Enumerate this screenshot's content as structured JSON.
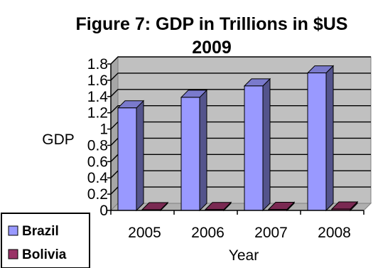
{
  "chart_data": {
    "type": "bar",
    "title": "Figure 7: GDP in Trillions in $US",
    "subtitle": "2009",
    "xlabel": "Year",
    "ylabel": "GDP",
    "categories": [
      "2005",
      "2006",
      "2007",
      "2008"
    ],
    "series": [
      {
        "name": "Brazil",
        "values": [
          1.26,
          1.39,
          1.53,
          1.69
        ],
        "color": "#9999ff"
      },
      {
        "name": "Bolivia",
        "values": [
          0.009,
          0.011,
          0.013,
          0.017
        ],
        "color": "#993366"
      }
    ],
    "ylim": [
      0,
      1.8
    ],
    "yticks": [
      "0",
      "0.2",
      "0.4",
      "0.6",
      "0.8",
      "1",
      "1.2",
      "1.4",
      "1.6",
      "1.8"
    ],
    "grid": true,
    "legend_position": "bottom-left",
    "style": "3d-bar"
  }
}
